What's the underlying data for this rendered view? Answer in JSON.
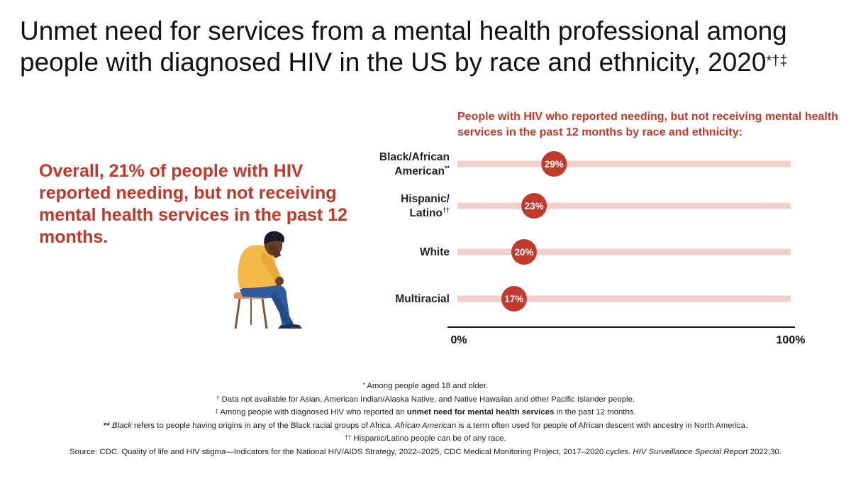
{
  "title": {
    "text": "Unmet need for services from a mental health professional among people with diagnosed HIV in the US by race and ethnicity, 2020",
    "marks": "*†‡"
  },
  "overall": {
    "text": "Overall, 21% of people with HIV reported needing, but not receiving mental health services in the past 12 months."
  },
  "colors": {
    "accent": "#c0392b",
    "track": "#f2cfcc",
    "axis": "#111111"
  },
  "chart_data": {
    "type": "dot",
    "title": "People with HIV who reported needing, but not receiving mental health services in the past 12 months by race and ethnicity:",
    "xlim": [
      0,
      100
    ],
    "x_tick_labels": [
      "0%",
      "100%"
    ],
    "categories": [
      {
        "label_lines": [
          "Black/African",
          "American"
        ],
        "mark": "**",
        "value": 29,
        "value_label": "29%"
      },
      {
        "label_lines": [
          "Hispanic/",
          "Latino"
        ],
        "mark": "††",
        "value": 23,
        "value_label": "23%"
      },
      {
        "label_lines": [
          "White"
        ],
        "mark": "",
        "value": 20,
        "value_label": "20%"
      },
      {
        "label_lines": [
          "Multiracial"
        ],
        "mark": "",
        "value": 17,
        "value_label": "17%"
      }
    ]
  },
  "footnotes": {
    "n1_mark": "*",
    "n1_text": " Among people aged 18 and older.",
    "n2_mark": "†",
    "n2_text": " Data not available for Asian, American Indian/Alaska Native, and Native Hawaiian and other Pacific Islander people.",
    "n3_mark": "‡",
    "n3_text_a": " Among people with diagnosed HIV who reported an ",
    "n3_bold": "unmet need for mental health services",
    "n3_text_b": " in the past 12 months.",
    "n4_mark": "**",
    "n4_italic_a": "Black",
    "n4_text_a": " refers to people having origins in any of the Black racial groups of Africa. ",
    "n4_italic_b": "African American",
    "n4_text_b": " is a term often used for people of African descent with ancestry in North America.",
    "n5_mark": "††",
    "n5_text": " Hispanic/Latino people can be of any race.",
    "source_a": "Source: CDC. Quality of life and HIV stigma—Indicators for the National HIV/AIDS Strategy, 2022–2025, CDC Medical Monitoring Project, 2017–2020 cycles. ",
    "source_italic": "HIV Surveillance Special Report",
    "source_b": " 2022;30."
  }
}
